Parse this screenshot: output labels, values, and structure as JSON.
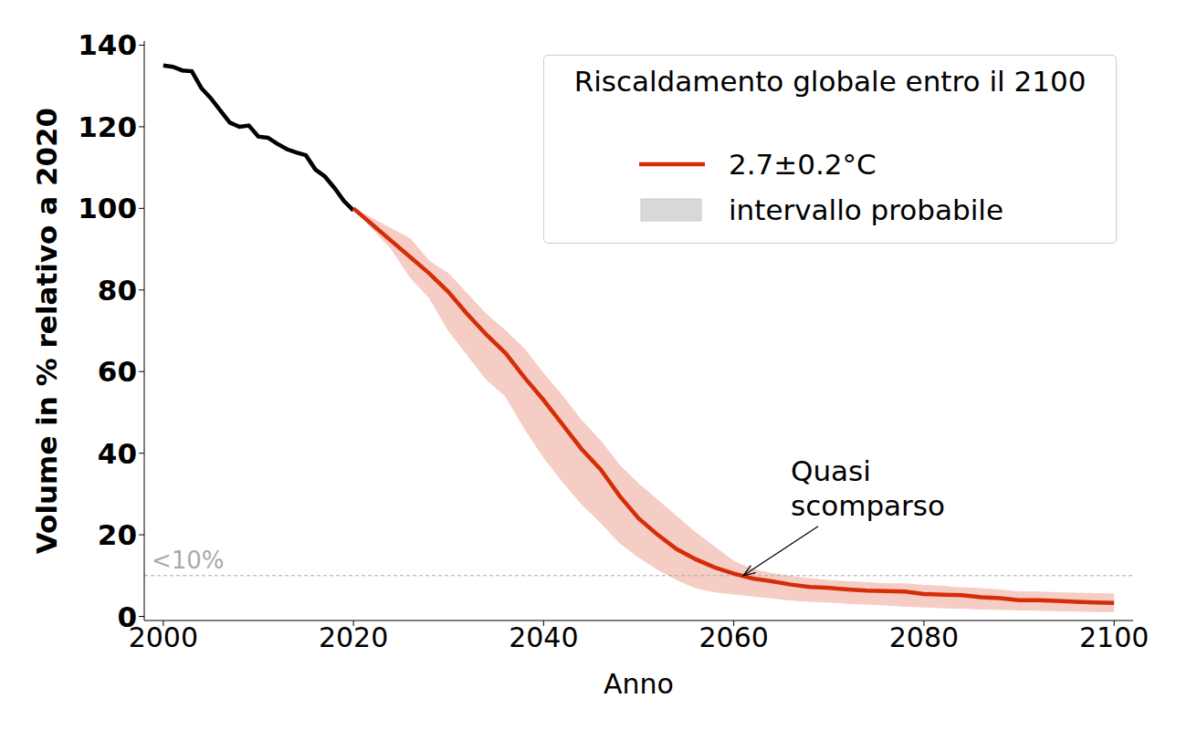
{
  "chart_data": {
    "type": "line",
    "xlabel": "Anno",
    "ylabel": "Volume in % relativo a 2020",
    "xlim": [
      1998,
      2102
    ],
    "xticks": [
      2000,
      2020,
      2040,
      2060,
      2080,
      2100
    ],
    "ylim": [
      -1,
      141
    ],
    "yticks": [
      0,
      20,
      40,
      60,
      80,
      100,
      120,
      140
    ],
    "grid": false,
    "legend": "upper right",
    "legend_title": "Riscaldamento globale entro il 2100",
    "series": [
      {
        "color": "#000000",
        "x": [
          2000,
          2001,
          2002,
          2003,
          2004,
          2005,
          2006,
          2007,
          2008,
          2009,
          2010,
          2011,
          2012,
          2013,
          2014,
          2015,
          2016,
          2017,
          2018,
          2019,
          2020
        ],
        "values": [
          135,
          134.7,
          133.8,
          133.6,
          129.5,
          127,
          124,
          121,
          120,
          120.3,
          117.6,
          117.3,
          115.8,
          114.5,
          113.7,
          113,
          109.5,
          107.8,
          105,
          101.8,
          99.5
        ]
      },
      {
        "name": "2.7±0.2°C",
        "color": "#d62d09",
        "x": [
          2020,
          2022,
          2024,
          2026,
          2028,
          2030,
          2032,
          2034,
          2036,
          2038,
          2040,
          2042,
          2044,
          2046,
          2048,
          2050,
          2052,
          2054,
          2056,
          2058,
          2060,
          2062,
          2064,
          2066,
          2068,
          2070,
          2072,
          2074,
          2076,
          2078,
          2080,
          2082,
          2084,
          2086,
          2088,
          2090,
          2092,
          2094,
          2096,
          2098,
          2100
        ],
        "values": [
          100,
          96,
          92,
          88,
          84,
          79.5,
          74,
          69,
          64.5,
          58.5,
          53,
          47,
          41,
          36,
          29.5,
          24,
          20,
          16.5,
          14,
          12,
          10.5,
          9.3,
          8.6,
          7.8,
          7.2,
          7,
          6.6,
          6.3,
          6.2,
          6.1,
          5.5,
          5.3,
          5.2,
          4.7,
          4.5,
          4,
          4,
          3.8,
          3.6,
          3.4,
          3.3
        ]
      },
      {
        "name": "intervallo probabile",
        "type": "band",
        "color": "#f5cdc5",
        "x": [
          2020,
          2022,
          2024,
          2026,
          2028,
          2030,
          2032,
          2034,
          2036,
          2038,
          2040,
          2042,
          2044,
          2046,
          2048,
          2050,
          2052,
          2054,
          2056,
          2058,
          2060,
          2062,
          2064,
          2066,
          2068,
          2070,
          2072,
          2074,
          2076,
          2078,
          2080,
          2082,
          2084,
          2086,
          2088,
          2090,
          2092,
          2094,
          2096,
          2098,
          2100
        ],
        "lower": [
          100,
          95,
          90,
          83,
          78,
          70,
          64,
          58,
          54,
          46,
          39,
          33,
          27.5,
          23,
          18,
          14.5,
          11.5,
          9,
          7,
          6,
          5.5,
          5,
          4.5,
          4,
          3.7,
          3.5,
          3.2,
          3,
          2.8,
          2.5,
          2.3,
          2.1,
          2,
          1.8,
          1.7,
          1.6,
          1.5,
          1.4,
          1.3,
          1.2,
          1.2
        ],
        "upper": [
          100,
          97.5,
          95,
          92.5,
          87,
          84,
          79,
          74,
          70,
          65.5,
          59.5,
          54,
          48,
          43,
          37,
          32.5,
          28.5,
          24.5,
          20.5,
          17,
          13.5,
          11.5,
          10.5,
          9.8,
          9.3,
          8.8,
          8.5,
          8.3,
          8,
          8,
          7.6,
          7.4,
          7,
          6.8,
          6.5,
          6,
          6,
          5.8,
          5.7,
          5.6,
          5.5
        ]
      }
    ],
    "hline": {
      "value": 10,
      "label": "<10%",
      "color": "#aaaaaa",
      "line_style": "dashed"
    },
    "annotation": {
      "text": "Quasi\nscomparso",
      "x": 2061,
      "y": 10
    }
  }
}
